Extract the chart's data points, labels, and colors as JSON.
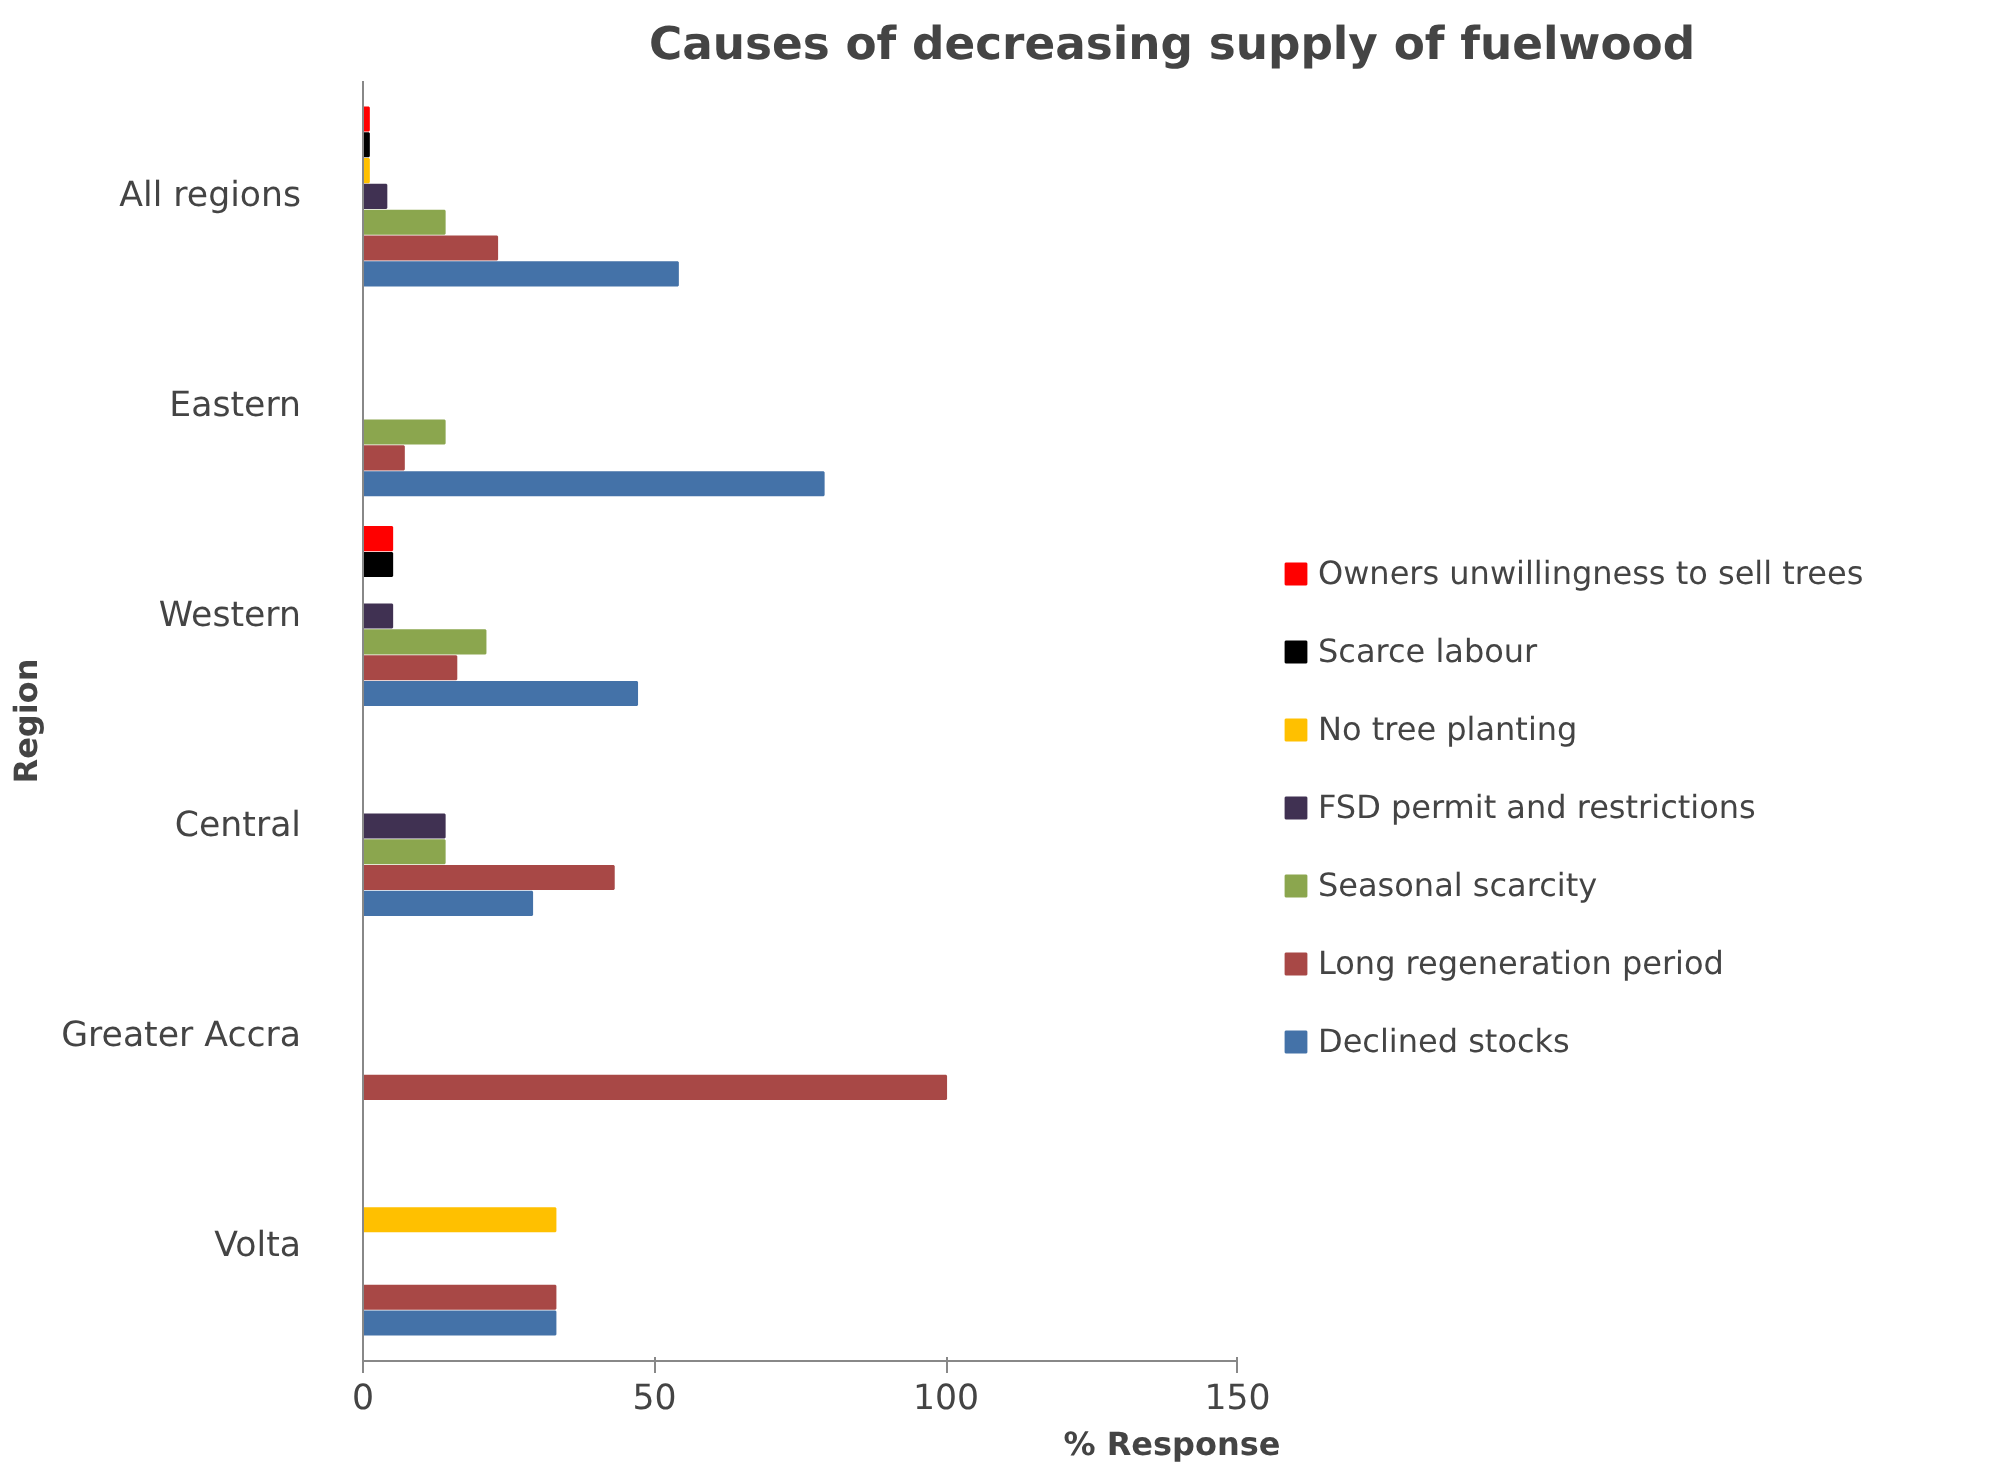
{
  "chart_data": {
    "type": "bar",
    "orientation": "horizontal",
    "title": "Causes of decreasing supply of fuelwood",
    "xlabel": "% Response",
    "ylabel": "Region",
    "categories": [
      "All regions",
      "Eastern",
      "Western",
      "Central",
      "Greater Accra",
      "Volta"
    ],
    "series": [
      {
        "name": "Owners unwillingness to sell trees",
        "color": "#ff0000",
        "values": [
          1,
          0,
          5,
          0,
          0,
          0
        ]
      },
      {
        "name": "Scarce labour",
        "color": "#000000",
        "values": [
          1,
          0,
          5,
          0,
          0,
          0
        ]
      },
      {
        "name": "No tree planting",
        "color": "#ffc000",
        "values": [
          1,
          0,
          0,
          0,
          0,
          33
        ]
      },
      {
        "name": "FSD permit and restrictions",
        "color": "#403152",
        "values": [
          4,
          0,
          5,
          14,
          0,
          0
        ]
      },
      {
        "name": "Seasonal scarcity",
        "color": "#8ba64e",
        "values": [
          14,
          14,
          21,
          14,
          0,
          0
        ]
      },
      {
        "name": "Long regeneration period",
        "color": "#a84846",
        "values": [
          23,
          7,
          16,
          43,
          100,
          33
        ]
      },
      {
        "name": "Declined stocks",
        "color": "#4472a8",
        "values": [
          54,
          79,
          47,
          29,
          0,
          33
        ]
      }
    ],
    "xlim": [
      0,
      150
    ],
    "xticks": [
      0,
      50,
      100,
      150
    ],
    "grid": false,
    "legend": "right"
  }
}
